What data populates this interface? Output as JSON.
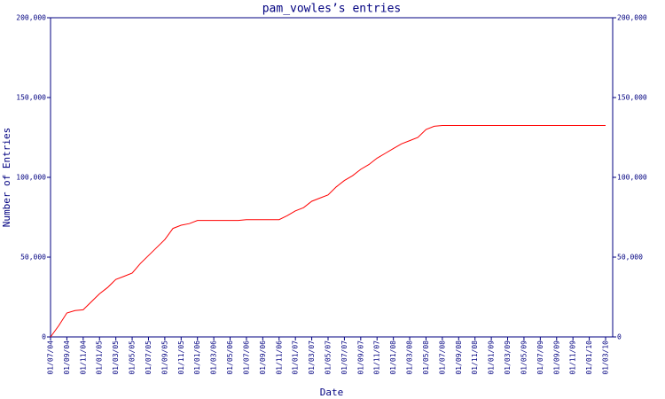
{
  "chart_data": {
    "type": "line",
    "title": "pam_vowles’s entries",
    "x_label": "Date",
    "y_label": "Number of Entries",
    "x": [
      "01/07/04",
      "01/08/04",
      "01/09/04",
      "01/10/04",
      "01/11/04",
      "01/12/04",
      "01/01/05",
      "01/02/05",
      "01/03/05",
      "01/04/05",
      "01/05/05",
      "01/06/05",
      "01/07/05",
      "01/08/05",
      "01/09/05",
      "01/10/05",
      "01/11/05",
      "01/12/05",
      "01/01/06",
      "01/02/06",
      "01/03/06",
      "01/04/06",
      "01/05/06",
      "01/06/06",
      "01/07/06",
      "01/08/06",
      "01/09/06",
      "01/10/06",
      "01/11/06",
      "01/12/06",
      "01/01/07",
      "01/02/07",
      "01/03/07",
      "01/04/07",
      "01/05/07",
      "01/06/07",
      "01/07/07",
      "01/08/07",
      "01/09/07",
      "01/10/07",
      "01/11/07",
      "01/12/07",
      "01/01/08",
      "01/02/08",
      "01/03/08",
      "01/04/08",
      "01/05/08",
      "01/06/08",
      "01/07/08",
      "01/08/08",
      "01/09/08",
      "01/10/08",
      "01/11/08",
      "01/12/08",
      "01/01/09",
      "01/02/09",
      "01/03/09",
      "01/04/09",
      "01/05/09",
      "01/06/09",
      "01/07/09",
      "01/08/09",
      "01/09/09",
      "01/10/09",
      "01/11/09",
      "01/12/09",
      "01/01/10",
      "01/02/10",
      "01/03/10"
    ],
    "series": [
      {
        "name": "entries",
        "color": "#ff0000",
        "values": [
          0,
          7000,
          15000,
          16500,
          17000,
          22000,
          27000,
          31000,
          36000,
          38000,
          40000,
          46000,
          51000,
          56000,
          61000,
          68000,
          70000,
          71000,
          73000,
          73000,
          73000,
          73000,
          73000,
          73000,
          73500,
          73500,
          73500,
          73500,
          73500,
          76000,
          79000,
          81000,
          85000,
          87000,
          89000,
          94000,
          98000,
          101000,
          105000,
          108000,
          112000,
          115000,
          118000,
          121000,
          123000,
          125000,
          130000,
          132000,
          132500,
          132500,
          132500,
          132500,
          132500,
          132500,
          132500,
          132500,
          132500,
          132500,
          132500,
          132500,
          132500,
          132500,
          132500,
          132500,
          132500,
          132500,
          132500,
          132500,
          132500
        ]
      }
    ],
    "xticks": [
      "01/07/04",
      "01/09/04",
      "01/11/04",
      "01/01/05",
      "01/03/05",
      "01/05/05",
      "01/07/05",
      "01/09/05",
      "01/11/05",
      "01/01/06",
      "01/03/06",
      "01/05/06",
      "01/07/06",
      "01/09/06",
      "01/11/06",
      "01/01/07",
      "01/03/07",
      "01/05/07",
      "01/07/07",
      "01/09/07",
      "01/11/07",
      "01/01/08",
      "01/03/08",
      "01/05/08",
      "01/07/08",
      "01/09/08",
      "01/11/08",
      "01/01/09",
      "01/03/09",
      "01/05/09",
      "01/07/09",
      "01/09/09",
      "01/11/09",
      "01/01/10",
      "01/03/10"
    ],
    "ylim": [
      0,
      200000
    ],
    "yticks": [
      0,
      {
        "value": 50000,
        "label": "50,000"
      },
      {
        "value": 100000,
        "label": "100,000"
      },
      {
        "value": 150000,
        "label": "150,000"
      },
      {
        "value": 200000,
        "label": "200,000"
      }
    ]
  }
}
